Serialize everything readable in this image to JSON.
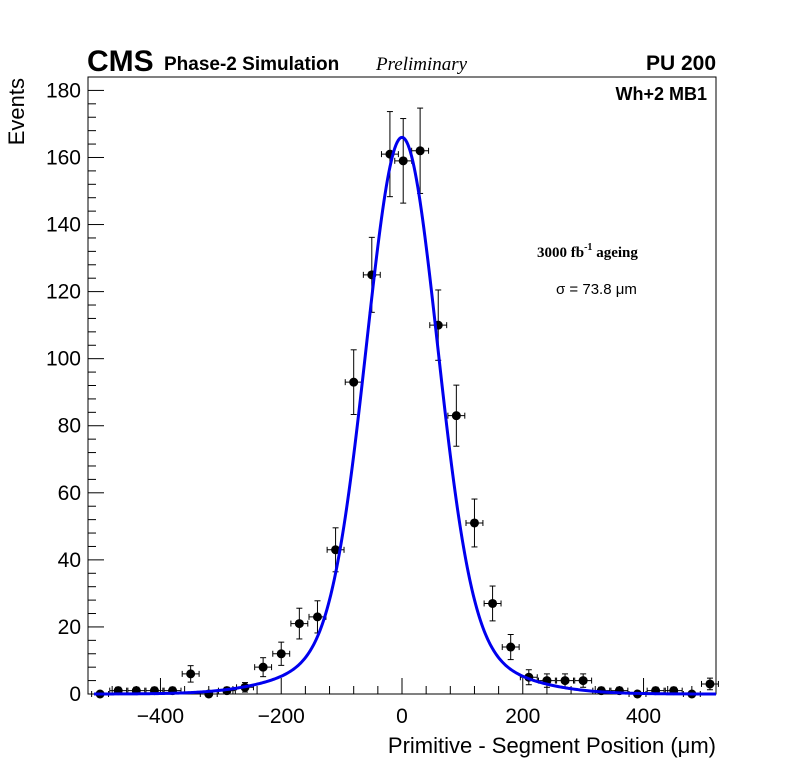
{
  "chart_data": {
    "type": "scatter",
    "experiment": "CMS",
    "subtitle": "Phase-2 Simulation",
    "status": "Preliminary",
    "pileup": "PU 200",
    "chamber": "Wh+2 MB1",
    "ageing": {
      "value": "3000 fb",
      "exponent": "-1",
      "suffix": " ageing"
    },
    "fit_sigma_label": "σ = 73.8 μm",
    "xlabel": "Primitive - Segment Position (μm)",
    "ylabel": "Events",
    "xlim": [
      -520,
      520
    ],
    "ylim": [
      0,
      184
    ],
    "x_ticks": [
      -400,
      -200,
      0,
      200,
      400
    ],
    "x_tick_labels": [
      "−400",
      "−200",
      "0",
      "200",
      "400"
    ],
    "y_ticks": [
      0,
      20,
      40,
      60,
      80,
      100,
      120,
      140,
      160,
      180
    ],
    "y_tick_labels": [
      "0",
      "20",
      "40",
      "60",
      "80",
      "100",
      "120",
      "140",
      "160",
      "180"
    ],
    "bin_half_width": 14,
    "points": [
      {
        "x": -500,
        "y": 0
      },
      {
        "x": -470,
        "y": 1
      },
      {
        "x": -440,
        "y": 1
      },
      {
        "x": -410,
        "y": 1
      },
      {
        "x": -380,
        "y": 1
      },
      {
        "x": -350,
        "y": 6
      },
      {
        "x": -320,
        "y": 0
      },
      {
        "x": -290,
        "y": 1
      },
      {
        "x": -260,
        "y": 2
      },
      {
        "x": -230,
        "y": 8
      },
      {
        "x": -200,
        "y": 12
      },
      {
        "x": -170,
        "y": 21
      },
      {
        "x": -140,
        "y": 23
      },
      {
        "x": -110,
        "y": 43
      },
      {
        "x": -80,
        "y": 93
      },
      {
        "x": -50,
        "y": 125
      },
      {
        "x": -20,
        "y": 161
      },
      {
        "x": 2,
        "y": 159
      },
      {
        "x": 30,
        "y": 162
      },
      {
        "x": 60,
        "y": 110
      },
      {
        "x": 90,
        "y": 83
      },
      {
        "x": 120,
        "y": 51
      },
      {
        "x": 150,
        "y": 27
      },
      {
        "x": 180,
        "y": 14
      },
      {
        "x": 210,
        "y": 5
      },
      {
        "x": 240,
        "y": 4
      },
      {
        "x": 270,
        "y": 4
      },
      {
        "x": 300,
        "y": 4
      },
      {
        "x": 330,
        "y": 1
      },
      {
        "x": 360,
        "y": 1
      },
      {
        "x": 390,
        "y": 0
      },
      {
        "x": 420,
        "y": 1
      },
      {
        "x": 450,
        "y": 1
      },
      {
        "x": 480,
        "y": 0
      },
      {
        "x": 510,
        "y": 3
      }
    ],
    "fit": {
      "type": "double-gaussian",
      "mean": 0,
      "core": {
        "amplitude": 150,
        "sigma": 58
      },
      "tail": {
        "amplitude": 16,
        "sigma": 130
      }
    },
    "colors": {
      "points": "#000000",
      "fit": "#0000ee",
      "axis": "#000000"
    }
  }
}
